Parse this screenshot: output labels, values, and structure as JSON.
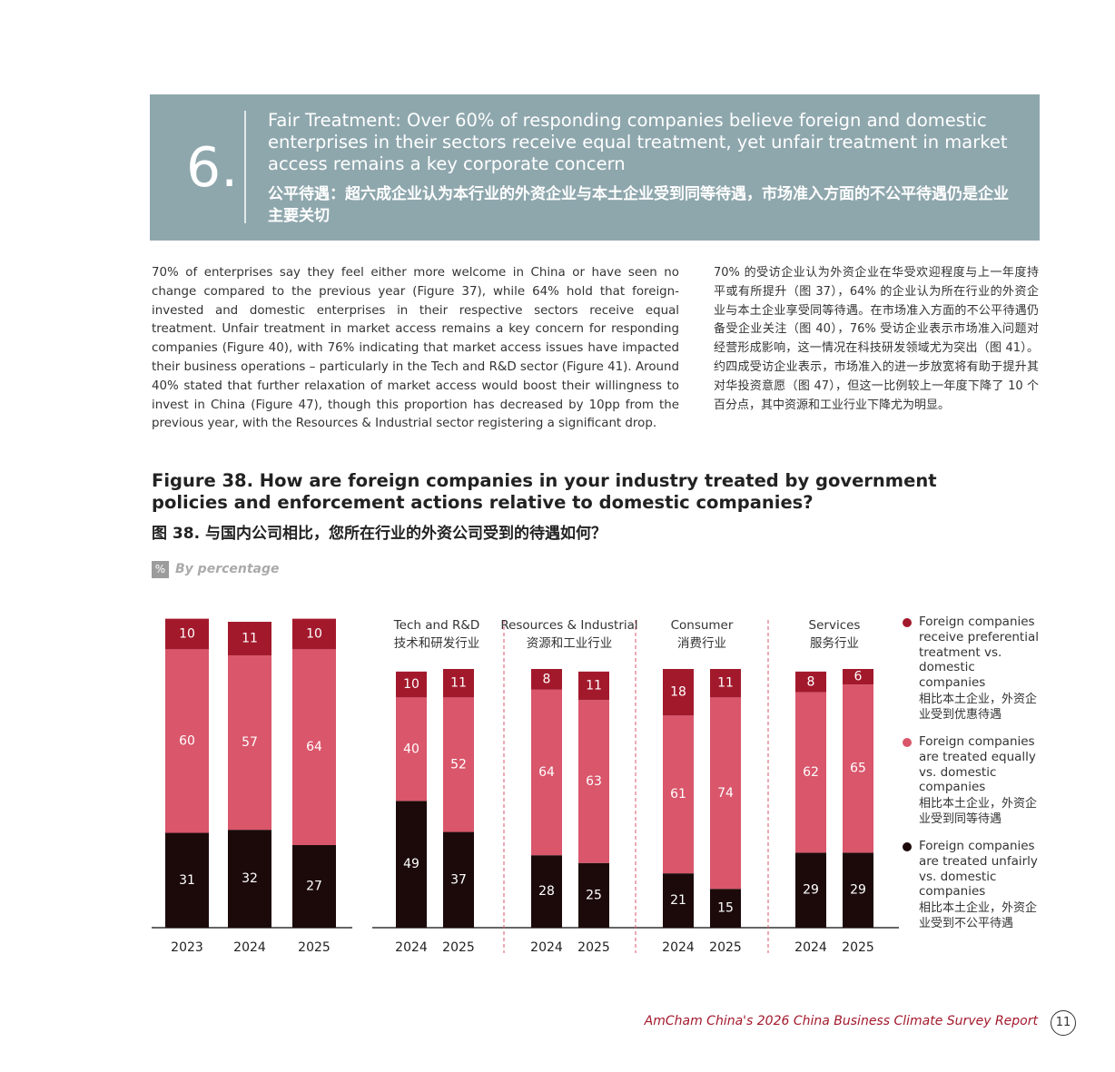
{
  "header": {
    "number": "6.",
    "title_en": "Fair Treatment: Over 60% of responding companies believe foreign and domestic enterprises in their sectors receive equal treatment, yet unfair treatment in market access remains a key corporate concern",
    "title_zh": "公平待遇：超六成企业认为本行业的外资企业与本土企业受到同等待遇，市场准入方面的不公平待遇仍是企业主要关切"
  },
  "body": {
    "en": "70% of enterprises say they feel either more welcome in China or have seen no change compared to the previous year (Figure 37), while 64% hold that foreign-invested and domestic enterprises in their respective sectors receive equal treatment. Unfair treatment in market access remains a key concern for responding companies (Figure 40), with 76% indicating that market access issues have impacted their business operations – particularly in the Tech and R&D sector (Figure 41). Around 40% stated that further relaxation of market access would boost their willingness to invest in China (Figure 47), though this proportion has decreased by 10pp from the previous year, with the Resources & Industrial sector registering a significant drop.",
    "zh": "70% 的受访企业认为外资企业在华受欢迎程度与上一年度持平或有所提升（图 37），64% 的企业认为所在行业的外资企业与本土企业享受同等待遇。在市场准入方面的不公平待遇仍备受企业关注（图 40），76% 受访企业表示市场准入问题对经营形成影响，这一情况在科技研发领域尤为突出（图 41）。约四成受访企业表示，市场准入的进一步放宽将有助于提升其对华投资意愿（图 47），但这一比例较上一年度下降了 10 个百分点，其中资源和工业行业下降尤为明显。"
  },
  "figure": {
    "title_en": "Figure 38. How are foreign companies in your industry treated by government policies and enforcement actions relative to domestic companies?",
    "title_zh": "图 38. 与国内公司相比，您所在行业的外资公司受到的待遇如何？",
    "unit_icon": "%",
    "unit_label": "By percentage"
  },
  "chart_data": [
    {
      "type": "bar",
      "stacked": true,
      "categories": [
        "2023",
        "2024",
        "2025"
      ],
      "series": [
        {
          "name": "Foreign companies are treated unfairly vs. domestic companies",
          "name_zh": "相比本土企业，外资企业受到不公平待遇",
          "color": "#1c0a0b",
          "values": [
            31,
            32,
            27
          ]
        },
        {
          "name": "Foreign companies are treated equally vs. domestic companies",
          "name_zh": "相比本土企业，外资企业受到同等待遇",
          "color": "#d9566b",
          "values": [
            60,
            57,
            64
          ]
        },
        {
          "name": "Foreign companies receive preferential treatment vs. domestic companies",
          "name_zh": "相比本土企业，外资企业受到优惠待遇",
          "color": "#a3192c",
          "values": [
            10,
            11,
            10
          ]
        }
      ]
    },
    {
      "type": "bar",
      "stacked": true,
      "title": "Tech and R&D",
      "title_zh": "技术和研发行业",
      "categories": [
        "2024",
        "2025"
      ],
      "series": [
        {
          "color": "#1c0a0b",
          "values": [
            49,
            37
          ]
        },
        {
          "color": "#d9566b",
          "values": [
            40,
            52
          ]
        },
        {
          "color": "#a3192c",
          "values": [
            10,
            11
          ]
        }
      ]
    },
    {
      "type": "bar",
      "stacked": true,
      "title": "Resources & Industrial",
      "title_zh": "资源和工业行业",
      "categories": [
        "2024",
        "2025"
      ],
      "series": [
        {
          "color": "#1c0a0b",
          "values": [
            28,
            25
          ]
        },
        {
          "color": "#d9566b",
          "values": [
            64,
            63
          ]
        },
        {
          "color": "#a3192c",
          "values": [
            8,
            11
          ]
        }
      ]
    },
    {
      "type": "bar",
      "stacked": true,
      "title": "Consumer",
      "title_zh": "消费行业",
      "categories": [
        "2024",
        "2025"
      ],
      "series": [
        {
          "color": "#1c0a0b",
          "values": [
            21,
            15
          ]
        },
        {
          "color": "#d9566b",
          "values": [
            61,
            74
          ]
        },
        {
          "color": "#a3192c",
          "values": [
            18,
            11
          ]
        }
      ]
    },
    {
      "type": "bar",
      "stacked": true,
      "title": "Services",
      "title_zh": "服务行业",
      "categories": [
        "2024",
        "2025"
      ],
      "series": [
        {
          "color": "#1c0a0b",
          "values": [
            29,
            29
          ]
        },
        {
          "color": "#d9566b",
          "values": [
            62,
            65
          ]
        },
        {
          "color": "#a3192c",
          "values": [
            8,
            6
          ]
        }
      ]
    }
  ],
  "footer": {
    "report": "AmCham China's 2026 China Business Climate Survey Report",
    "page": "11"
  }
}
